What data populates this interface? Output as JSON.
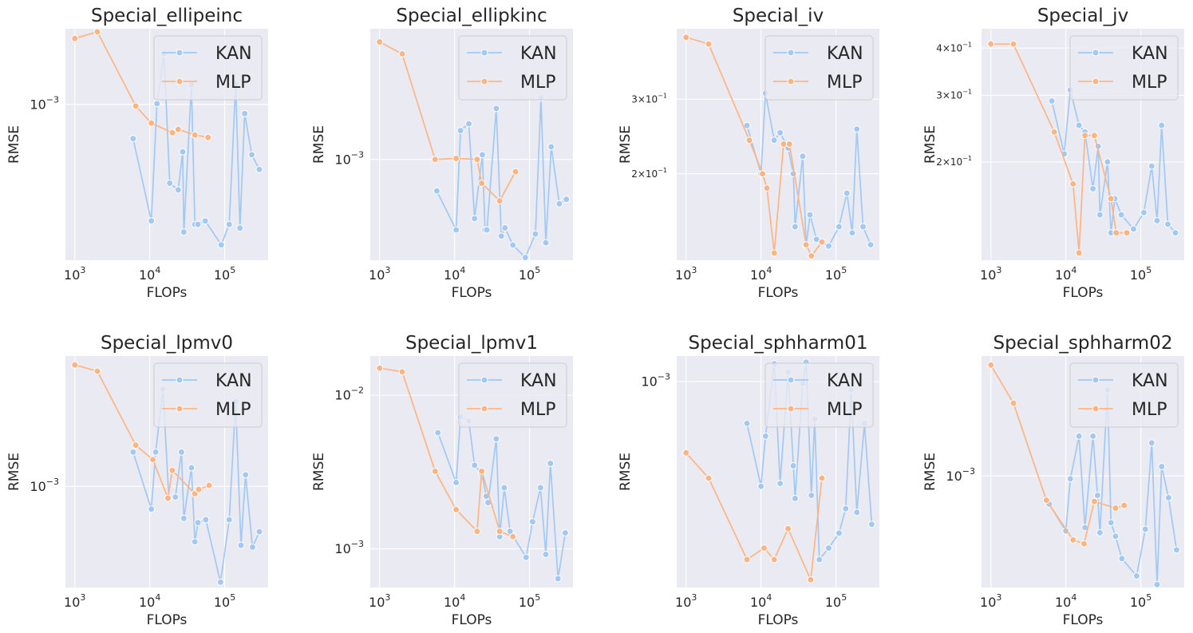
{
  "chart_data": [
    {
      "type": "line",
      "title": "Special_ellipeinc",
      "xlabel": "FLOPs",
      "ylabel": "RMSE",
      "xscale": "log",
      "yscale": "log",
      "xlim": [
        750,
        380000
      ],
      "ylim": [
        0.00014,
        0.0026
      ],
      "x_ticks": [
        {
          "value": 1000,
          "base": "10",
          "exp": "3"
        },
        {
          "value": 10000,
          "base": "10",
          "exp": "4"
        },
        {
          "value": 100000,
          "base": "10",
          "exp": "5"
        }
      ],
      "y_ticks": [
        {
          "value": 0.001,
          "base": "10",
          "exp": "−3"
        }
      ],
      "legend_position": "top-right",
      "series": [
        {
          "name": "KAN",
          "x": [
            6000,
            10500,
            12500,
            15500,
            18500,
            24000,
            27500,
            28500,
            36000,
            40000,
            44000,
            55000,
            90000,
            115000,
            140000,
            160000,
            185000,
            230000,
            290000
          ],
          "y": [
            0.00065,
            0.00023,
            0.00101,
            0.0019,
            0.00037,
            0.00034,
            0.00055,
            0.0002,
            0.00128,
            0.00022,
            0.00022,
            0.00023,
            0.00017,
            0.00022,
            0.0013,
            0.00021,
            0.00089,
            0.00053,
            0.00044
          ]
        },
        {
          "name": "MLP",
          "x": [
            1000,
            2000,
            6500,
            10500,
            20000,
            24000,
            40000,
            60000
          ],
          "y": [
            0.0023,
            0.0025,
            0.00098,
            0.00079,
            0.0007,
            0.00073,
            0.00068,
            0.00066
          ]
        }
      ]
    },
    {
      "type": "line",
      "title": "Special_ellipkinc",
      "xlabel": "FLOPs",
      "ylabel": "RMSE",
      "xscale": "log",
      "yscale": "log",
      "xlim": [
        750,
        380000
      ],
      "ylim": [
        0.00035,
        0.0039
      ],
      "x_ticks": [
        {
          "value": 1000,
          "base": "10",
          "exp": "3"
        },
        {
          "value": 10000,
          "base": "10",
          "exp": "4"
        },
        {
          "value": 100000,
          "base": "10",
          "exp": "5"
        }
      ],
      "y_ticks": [
        {
          "value": 0.001,
          "base": "10",
          "exp": "−3"
        }
      ],
      "legend_position": "top-right",
      "series": [
        {
          "name": "KAN",
          "x": [
            5800,
            10500,
            12000,
            15500,
            18500,
            23500,
            25500,
            27000,
            36000,
            42000,
            47000,
            60000,
            88000,
            120000,
            142000,
            165000,
            195000,
            250000,
            310000
          ],
          "y": [
            0.00072,
            0.00048,
            0.00135,
            0.00145,
            0.00054,
            0.00105,
            0.00048,
            0.00048,
            0.0017,
            0.00045,
            0.00049,
            0.00041,
            0.00036,
            0.00046,
            0.0019,
            0.00042,
            0.00114,
            0.00063,
            0.00066
          ]
        },
        {
          "name": "MLP",
          "x": [
            1000,
            2000,
            5500,
            10500,
            20000,
            23000,
            40000,
            65000
          ],
          "y": [
            0.0034,
            0.003,
            0.001,
            0.00101,
            0.001,
            0.00078,
            0.00065,
            0.00088
          ]
        }
      ]
    },
    {
      "type": "line",
      "title": "Special_iv",
      "xlabel": "FLOPs",
      "ylabel": "RMSE",
      "xscale": "log",
      "yscale": "log",
      "xlim": [
        750,
        380000
      ],
      "ylim": [
        0.125,
        0.44
      ],
      "x_ticks": [
        {
          "value": 1000,
          "base": "10",
          "exp": "3"
        },
        {
          "value": 10000,
          "base": "10",
          "exp": "4"
        },
        {
          "value": 100000,
          "base": "10",
          "exp": "5"
        }
      ],
      "y_ticks": [
        {
          "value": 0.2,
          "base": "2×10",
          "exp": "−1"
        },
        {
          "value": 0.3,
          "base": "3×10",
          "exp": "−1"
        }
      ],
      "legend_position": "top-right",
      "series": [
        {
          "name": "KAN",
          "x": [
            6500,
            10000,
            11500,
            15000,
            18000,
            23000,
            27000,
            28500,
            36000,
            40000,
            45000,
            55000,
            80000,
            110000,
            140000,
            165000,
            190000,
            230000,
            290000
          ],
          "y": [
            0.26,
            0.2,
            0.31,
            0.24,
            0.25,
            0.23,
            0.2,
            0.15,
            0.22,
            0.135,
            0.16,
            0.14,
            0.135,
            0.15,
            0.18,
            0.145,
            0.255,
            0.15,
            0.136
          ]
        },
        {
          "name": "MLP",
          "x": [
            1000,
            2000,
            7000,
            10500,
            12000,
            15000,
            20000,
            24000,
            40000,
            47000,
            65000
          ],
          "y": [
            0.42,
            0.405,
            0.24,
            0.2,
            0.185,
            0.13,
            0.235,
            0.235,
            0.136,
            0.128,
            0.138
          ]
        }
      ]
    },
    {
      "type": "line",
      "title": "Special_jv",
      "xlabel": "FLOPs",
      "ylabel": "RMSE",
      "xscale": "log",
      "yscale": "log",
      "xlim": [
        750,
        380000
      ],
      "ylim": [
        0.11,
        0.45
      ],
      "x_ticks": [
        {
          "value": 1000,
          "base": "10",
          "exp": "3"
        },
        {
          "value": 10000,
          "base": "10",
          "exp": "4"
        },
        {
          "value": 100000,
          "base": "10",
          "exp": "5"
        }
      ],
      "y_ticks": [
        {
          "value": 0.2,
          "base": "2×10",
          "exp": "−1"
        },
        {
          "value": 0.3,
          "base": "3×10",
          "exp": "−1"
        },
        {
          "value": 0.4,
          "base": "4×10",
          "exp": "−1"
        }
      ],
      "legend_position": "top-right",
      "series": [
        {
          "name": "KAN",
          "x": [
            6500,
            9500,
            11500,
            15000,
            18000,
            23000,
            27000,
            28500,
            36000,
            40000,
            45000,
            55000,
            80000,
            110000,
            140000,
            165000,
            190000,
            230000,
            290000
          ],
          "y": [
            0.29,
            0.21,
            0.31,
            0.25,
            0.24,
            0.17,
            0.22,
            0.145,
            0.2,
            0.13,
            0.16,
            0.145,
            0.133,
            0.147,
            0.195,
            0.14,
            0.25,
            0.137,
            0.13
          ]
        },
        {
          "name": "MLP",
          "x": [
            1000,
            2000,
            7000,
            12500,
            15000,
            18000,
            24000,
            40000,
            47000,
            65000
          ],
          "y": [
            0.41,
            0.41,
            0.24,
            0.175,
            0.115,
            0.235,
            0.235,
            0.16,
            0.13,
            0.13
          ]
        }
      ]
    },
    {
      "type": "line",
      "title": "Special_lpmv0",
      "xlabel": "FLOPs",
      "ylabel": "RMSE",
      "xscale": "log",
      "yscale": "log",
      "xlim": [
        750,
        380000
      ],
      "ylim": [
        0.00037,
        0.0036
      ],
      "x_ticks": [
        {
          "value": 1000,
          "base": "10",
          "exp": "3"
        },
        {
          "value": 10000,
          "base": "10",
          "exp": "4"
        },
        {
          "value": 100000,
          "base": "10",
          "exp": "5"
        }
      ],
      "y_ticks": [
        {
          "value": 0.001,
          "base": "10",
          "exp": "−3"
        }
      ],
      "legend_position": "top-right",
      "series": [
        {
          "name": "KAN",
          "x": [
            6000,
            10500,
            12000,
            15000,
            18000,
            22000,
            26500,
            28500,
            36000,
            40000,
            44000,
            56000,
            88000,
            115000,
            140000,
            165000,
            190000,
            235000,
            290000
          ],
          "y": [
            0.0014,
            0.0008,
            0.0014,
            0.0026,
            0.00089,
            0.0009,
            0.0014,
            0.00073,
            0.0012,
            0.00058,
            0.0007,
            0.00072,
            0.00039,
            0.00072,
            0.0023,
            0.00056,
            0.00112,
            0.00055,
            0.00064
          ]
        },
        {
          "name": "MLP",
          "x": [
            1000,
            2000,
            6500,
            11000,
            17500,
            20000,
            40000,
            45000,
            62000
          ],
          "y": [
            0.0033,
            0.0031,
            0.0015,
            0.0013,
            0.00089,
            0.00117,
            0.00093,
            0.00097,
            0.00101
          ]
        }
      ]
    },
    {
      "type": "line",
      "title": "Special_lpmv1",
      "xlabel": "FLOPs",
      "ylabel": "RMSE",
      "xscale": "log",
      "yscale": "log",
      "xlim": [
        750,
        380000
      ],
      "ylim": [
        0.00056,
        0.018
      ],
      "x_ticks": [
        {
          "value": 1000,
          "base": "10",
          "exp": "3"
        },
        {
          "value": 10000,
          "base": "10",
          "exp": "4"
        },
        {
          "value": 100000,
          "base": "10",
          "exp": "5"
        }
      ],
      "y_ticks": [
        {
          "value": 0.001,
          "base": "10",
          "exp": "−3"
        },
        {
          "value": 0.01,
          "base": "10",
          "exp": "−2"
        }
      ],
      "legend_position": "top-right",
      "series": [
        {
          "name": "KAN",
          "x": [
            6000,
            10500,
            12000,
            15500,
            18500,
            23000,
            26500,
            28000,
            36000,
            40000,
            46000,
            55000,
            90000,
            110000,
            140000,
            165000,
            190000,
            240000,
            300000
          ],
          "y": [
            0.0057,
            0.0027,
            0.0072,
            0.0068,
            0.0035,
            0.0031,
            0.0022,
            0.002,
            0.0052,
            0.0012,
            0.0025,
            0.0013,
            0.00088,
            0.0015,
            0.0025,
            0.00092,
            0.0036,
            0.00064,
            0.00127
          ]
        },
        {
          "name": "MLP",
          "x": [
            1000,
            2000,
            5500,
            10500,
            20000,
            23000,
            40000,
            60000
          ],
          "y": [
            0.015,
            0.0142,
            0.0032,
            0.0018,
            0.0013,
            0.0032,
            0.0013,
            0.0012
          ]
        }
      ]
    },
    {
      "type": "line",
      "title": "Special_sphharm01",
      "xlabel": "FLOPs",
      "ylabel": "RMSE",
      "xscale": "log",
      "yscale": "log",
      "xlim": [
        750,
        380000
      ],
      "ylim": [
        0.00012,
        0.0013
      ],
      "x_ticks": [
        {
          "value": 1000,
          "base": "10",
          "exp": "3"
        },
        {
          "value": 10000,
          "base": "10",
          "exp": "4"
        },
        {
          "value": 100000,
          "base": "10",
          "exp": "5"
        }
      ],
      "y_ticks": [
        {
          "value": 0.001,
          "base": "10",
          "exp": "−3"
        }
      ],
      "legend_position": "top-right",
      "series": [
        {
          "name": "KAN",
          "x": [
            6500,
            10000,
            11500,
            15000,
            18000,
            23000,
            27000,
            28500,
            36000,
            40000,
            47000,
            52000,
            60000,
            80000,
            110000,
            135000,
            160000,
            190000,
            240000,
            300000
          ],
          "y": [
            0.00065,
            0.00034,
            0.00057,
            0.0012,
            0.00035,
            0.0011,
            0.00042,
            0.0003,
            0.00098,
            0.00122,
            0.00031,
            0.00068,
            0.00016,
            0.00018,
            0.00021,
            0.00027,
            0.00092,
            0.00026,
            0.00065,
            0.00023
          ]
        },
        {
          "name": "MLP",
          "x": [
            1000,
            2000,
            6500,
            11000,
            15000,
            23000,
            46000,
            65000
          ],
          "y": [
            0.00048,
            0.00037,
            0.00016,
            0.00018,
            0.00016,
            0.00022,
            0.00013,
            0.00037
          ]
        }
      ]
    },
    {
      "type": "line",
      "title": "Special_sphharm02",
      "xlabel": "FLOPs",
      "ylabel": "RMSE",
      "xscale": "log",
      "yscale": "log",
      "xlim": [
        750,
        380000
      ],
      "ylim": [
        0.00032,
        0.0034
      ],
      "x_ticks": [
        {
          "value": 1000,
          "base": "10",
          "exp": "3"
        },
        {
          "value": 10000,
          "base": "10",
          "exp": "4"
        },
        {
          "value": 100000,
          "base": "10",
          "exp": "5"
        }
      ],
      "y_ticks": [
        {
          "value": 0.001,
          "base": "10",
          "exp": "−3"
        }
      ],
      "legend_position": "top-right",
      "series": [
        {
          "name": "KAN",
          "x": [
            6000,
            10000,
            11500,
            15000,
            18000,
            23000,
            26500,
            28500,
            36000,
            40000,
            46000,
            56000,
            88000,
            115000,
            140000,
            165000,
            190000,
            235000,
            300000
          ],
          "y": [
            0.00075,
            0.00057,
            0.00097,
            0.0015,
            0.00059,
            0.0015,
            0.00082,
            0.00056,
            0.0024,
            0.00062,
            0.00054,
            0.00043,
            0.00036,
            0.00058,
            0.0014,
            0.00033,
            0.0011,
            0.0008,
            0.00047
          ]
        },
        {
          "name": "MLP",
          "x": [
            1000,
            2000,
            5500,
            12500,
            17500,
            24000,
            46000,
            60000
          ],
          "y": [
            0.0031,
            0.0021,
            0.00078,
            0.00052,
            0.0005,
            0.00077,
            0.00072,
            0.00074
          ]
        }
      ]
    }
  ]
}
